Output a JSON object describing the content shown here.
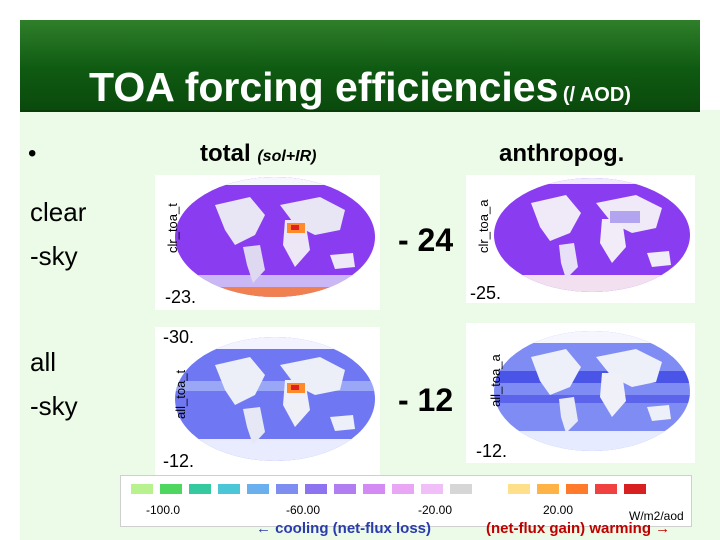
{
  "title": {
    "main": "TOA forcing efficiencies",
    "sub": "(/ AOD)"
  },
  "bullet": "•",
  "headers": {
    "total": "total",
    "total_sub": "(sol+IR)",
    "anthro": "anthropog."
  },
  "rows": [
    {
      "label_line1": "clear",
      "label_line2": "-sky",
      "total_panel_label": "clr_toa_t",
      "total_value": "-23.",
      "anthro_panel_label": "clr_toa_a",
      "anthro_value": "-25.",
      "summary": "- 24"
    },
    {
      "label_line1": "all",
      "label_line2": "-sky",
      "total_panel_label": "all_toa_t",
      "total_top_value": "-30.",
      "total_value": "-12.",
      "anthro_panel_label": "all_toa_a",
      "anthro_value": "-12.",
      "summary": "- 12"
    }
  ],
  "colorbar": {
    "ticks": [
      "-100.0",
      "-60.00",
      "-20.00",
      "20.00"
    ],
    "unit": "W/m2/aod",
    "colors": [
      "#b7f28f",
      "#4fd65e",
      "#35c9a0",
      "#4bc6d6",
      "#6bb0ee",
      "#7d8ef0",
      "#8d73ef",
      "#b17ef2",
      "#d38af2",
      "#e9a6f5",
      "#f0bff7",
      "#d6d6d6",
      "#ffffff",
      "#ffe08a",
      "#ffb347",
      "#ff7a2a",
      "#f04040",
      "#d82020"
    ]
  },
  "footer": {
    "left": "← cooling (net-flux loss)",
    "right": "(net-flux gain) warming →"
  },
  "colors": {
    "banner": "#0f5a12",
    "background": "#ecfbe7",
    "cooling": "#2a3bb0",
    "warming": "#c00000",
    "ocean": "#8a3df0",
    "land": "#e9e9f2"
  }
}
